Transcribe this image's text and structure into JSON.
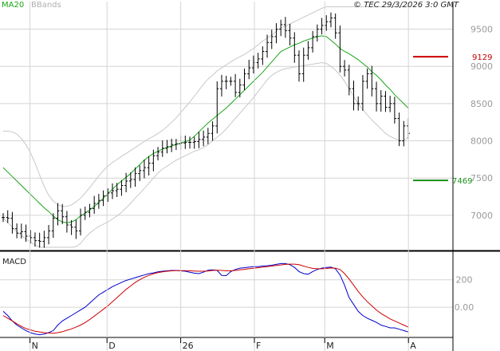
{
  "header": {
    "indicator_label": "MA20",
    "bands_label": "BBands",
    "copyright": "© TEC 29/3/2026 3:0 GMT"
  },
  "colors": {
    "price_bar": "#000000",
    "ma20": "#1aa51a",
    "bbands": "#c8c8c8",
    "resistance": "#cc0000",
    "support": "#1a8f1a",
    "macd_line": "#0000cc",
    "signal_line": "#cc0000",
    "grid": "#d4d4d4"
  },
  "chart_data": [
    {
      "type": "ohlc",
      "title": "",
      "ylim": [
        6570,
        9870
      ],
      "yticks": [
        {
          "value": 9500,
          "label": "9500"
        },
        {
          "value": 9000,
          "label": "9000"
        },
        {
          "value": 8500,
          "label": "8500"
        },
        {
          "value": 8000,
          "label": "8000"
        },
        {
          "value": 7500,
          "label": "7500"
        },
        {
          "value": 7000,
          "label": "7000"
        }
      ],
      "series": [
        {
          "name": "MA20"
        },
        {
          "name": "BBands"
        }
      ],
      "close": [
        6970,
        6960,
        6820,
        6760,
        6780,
        6720,
        6700,
        6660,
        6650,
        6700,
        6790,
        6960,
        7060,
        6980,
        6870,
        6840,
        6790,
        7000,
        7040,
        7090,
        7160,
        7200,
        7260,
        7300,
        7330,
        7350,
        7400,
        7460,
        7480,
        7560,
        7600,
        7640,
        7700,
        7800,
        7850,
        7900,
        7920,
        7950,
        7960,
        7970,
        7980,
        7980,
        7990,
        8020,
        8050,
        8100,
        8200,
        8700,
        8800,
        8800,
        8800,
        8650,
        8750,
        8900,
        8980,
        9050,
        9100,
        9200,
        9320,
        9400,
        9500,
        9560,
        9480,
        9380,
        9150,
        8900,
        9150,
        9250,
        9400,
        9500,
        9550,
        9600,
        9650,
        9450,
        9000,
        8950,
        8700,
        8500,
        8500,
        8800,
        8900,
        8700,
        8500,
        8600,
        8450,
        8500,
        8300,
        8000,
        8200,
        8100
      ],
      "ma20": [
        7640,
        7580,
        7520,
        7460,
        7400,
        7340,
        7280,
        7220,
        7160,
        7100,
        7050,
        6990,
        6940,
        6910,
        6900,
        6910,
        6940,
        6990,
        7030,
        7070,
        7120,
        7170,
        7230,
        7290,
        7350,
        7410,
        7460,
        7510,
        7560,
        7620,
        7680,
        7740,
        7790,
        7830,
        7860,
        7890,
        7910,
        7930,
        7950,
        7970,
        7990,
        8010,
        8060,
        8120,
        8180,
        8240,
        8290,
        8340,
        8390,
        8440,
        8500,
        8560,
        8620,
        8680,
        8740,
        8800,
        8860,
        8920,
        8990,
        9060,
        9130,
        9200,
        9230,
        9260,
        9290,
        9310,
        9340,
        9360,
        9380,
        9400,
        9410,
        9400,
        9350,
        9300,
        9240,
        9200,
        9170,
        9130,
        9090,
        9040,
        8990,
        8930,
        8880,
        8820,
        8750,
        8690,
        8620,
        8560,
        8500,
        8440
      ],
      "bb_upper": [
        8130,
        8130,
        8120,
        8090,
        8030,
        7950,
        7840,
        7700,
        7540,
        7390,
        7270,
        7190,
        7140,
        7120,
        7120,
        7140,
        7180,
        7230,
        7300,
        7370,
        7450,
        7530,
        7600,
        7660,
        7710,
        7750,
        7790,
        7830,
        7870,
        7910,
        7950,
        7990,
        8030,
        8060,
        8100,
        8140,
        8190,
        8250,
        8310,
        8380,
        8450,
        8520,
        8600,
        8680,
        8760,
        8830,
        8880,
        8940,
        8980,
        9020,
        9060,
        9100,
        9130,
        9160,
        9200,
        9240,
        9290,
        9340,
        9380,
        9420,
        9470,
        9520,
        9540,
        9570,
        9600,
        9630,
        9660,
        9690,
        9720,
        9750,
        9780,
        9800,
        9800,
        9800,
        9800,
        9800,
        9800,
        9800,
        9800,
        9800,
        9800,
        9800,
        9800,
        9800,
        9800,
        9800,
        9800,
        9800,
        9800,
        9800
      ],
      "bb_lower": [
        6960,
        6900,
        6840,
        6780,
        6730,
        6680,
        6640,
        6600,
        6570,
        6570,
        6570,
        6570,
        6570,
        6570,
        6570,
        6570,
        6580,
        6620,
        6700,
        6760,
        6810,
        6850,
        6880,
        6910,
        6950,
        6990,
        7040,
        7100,
        7160,
        7230,
        7290,
        7360,
        7430,
        7500,
        7570,
        7620,
        7660,
        7700,
        7740,
        7770,
        7800,
        7830,
        7860,
        7880,
        7910,
        7950,
        8000,
        8050,
        8100,
        8160,
        8230,
        8300,
        8370,
        8440,
        8510,
        8580,
        8660,
        8740,
        8820,
        8880,
        8920,
        8950,
        8970,
        8980,
        8990,
        9000,
        9010,
        9020,
        9030,
        9040,
        9050,
        9040,
        9000,
        8950,
        8880,
        8800,
        8700,
        8600,
        8500,
        8420,
        8350,
        8280,
        8220,
        8160,
        8100,
        8060,
        8030,
        8010,
        8000,
        8050
      ]
    },
    {
      "type": "levels",
      "levels": [
        {
          "name": "resistance",
          "value": 9129,
          "label": "9129"
        },
        {
          "name": "support",
          "value": 7469,
          "label": "7469"
        }
      ]
    },
    {
      "type": "line",
      "title": "MACD",
      "ylim": [
        -220,
        390
      ],
      "yticks": [
        {
          "value": 200,
          "label": "200"
        },
        {
          "value": 0,
          "label": "0.00"
        }
      ],
      "series": [
        {
          "name": "MACD",
          "values": [
            -30,
            -60,
            -100,
            -130,
            -150,
            -170,
            -185,
            -195,
            -200,
            -195,
            -185,
            -170,
            -130,
            -100,
            -80,
            -60,
            -40,
            -20,
            0,
            30,
            60,
            90,
            110,
            130,
            150,
            165,
            180,
            195,
            205,
            215,
            225,
            235,
            245,
            250,
            258,
            262,
            265,
            268,
            268,
            265,
            262,
            255,
            248,
            245,
            255,
            270,
            272,
            268,
            232,
            230,
            260,
            275,
            285,
            288,
            292,
            296,
            296,
            300,
            302,
            306,
            312,
            318,
            318,
            310,
            290,
            260,
            245,
            240,
            260,
            275,
            285,
            290,
            292,
            280,
            235,
            160,
            70,
            20,
            -30,
            -60,
            -80,
            -95,
            -110,
            -130,
            -140,
            -150,
            -150,
            -160,
            -170,
            -180
          ]
        },
        {
          "name": "Signal",
          "values": [
            -60,
            -80,
            -100,
            -120,
            -140,
            -155,
            -165,
            -175,
            -180,
            -185,
            -188,
            -190,
            -185,
            -178,
            -168,
            -158,
            -145,
            -130,
            -112,
            -90,
            -65,
            -40,
            -15,
            10,
            40,
            70,
            100,
            130,
            155,
            180,
            200,
            218,
            232,
            244,
            252,
            258,
            262,
            265,
            266,
            266,
            266,
            265,
            264,
            262,
            262,
            264,
            268,
            270,
            268,
            265,
            265,
            268,
            272,
            276,
            280,
            284,
            288,
            292,
            296,
            300,
            304,
            308,
            312,
            314,
            314,
            310,
            300,
            290,
            283,
            280,
            280,
            282,
            286,
            284,
            275,
            245,
            205,
            160,
            115,
            75,
            40,
            10,
            -20,
            -45,
            -65,
            -85,
            -100,
            -115,
            -130,
            -145
          ]
        }
      ]
    },
    {
      "type": "axis",
      "x_labels": [
        {
          "label": "N",
          "index": 8
        },
        {
          "label": "D",
          "index": 31
        },
        {
          "label": "26",
          "index": 53
        },
        {
          "label": "F",
          "index": 75
        },
        {
          "label": "M",
          "index": 96
        },
        {
          "label": "A",
          "index": 121
        }
      ]
    }
  ]
}
